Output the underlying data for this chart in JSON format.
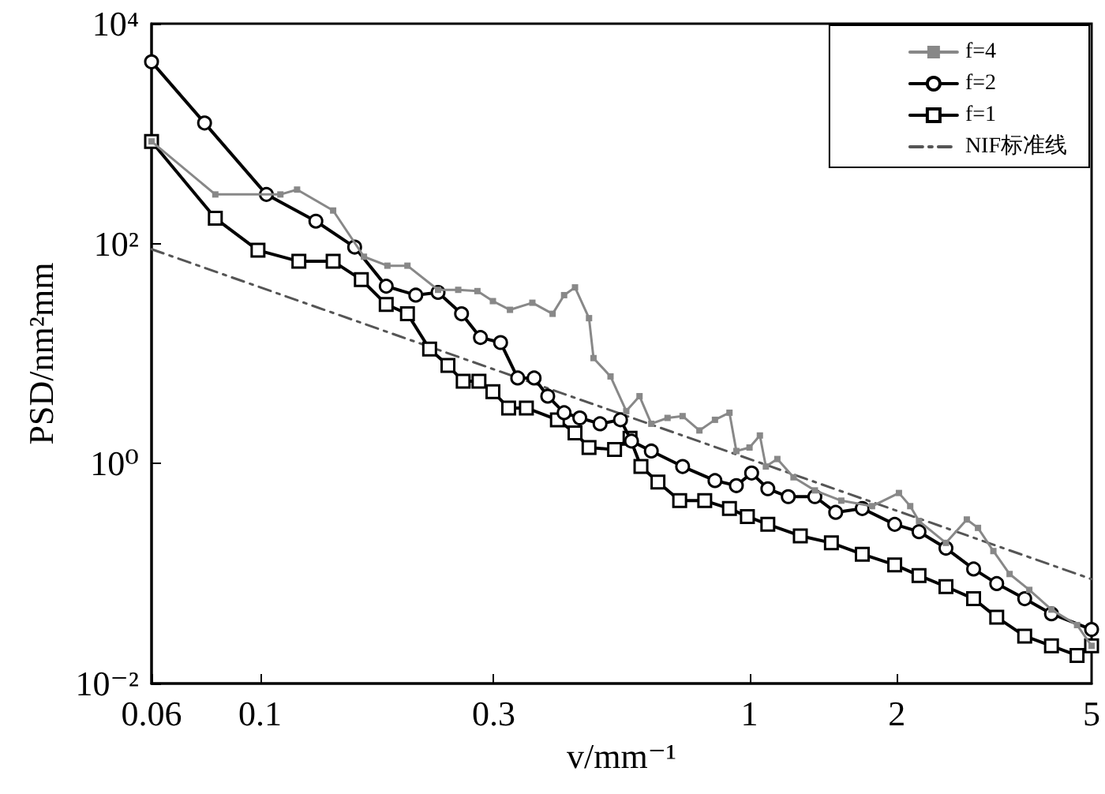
{
  "chart_data": {
    "type": "line",
    "xlabel": "v/mm⁻¹",
    "ylabel": "PSD/nm²mm",
    "log": "xy",
    "grid": false,
    "legend": "top right",
    "xlim": [
      0.06,
      5
    ],
    "xticks": [
      0.06,
      0.1,
      0.3,
      1,
      2,
      5
    ],
    "ylim": [
      0.01,
      10000
    ],
    "yticks": [
      {
        "value": 0.01,
        "label": "10⁻²"
      },
      {
        "value": 1,
        "label": "10⁰"
      },
      {
        "value": 100,
        "label": "10²"
      },
      {
        "value": 10000,
        "label": "10⁴"
      }
    ],
    "series": [
      {
        "name": "f=4",
        "color": "#888888",
        "marker": "square",
        "line_style": "solid",
        "x": [
          0.06,
          0.081,
          0.11,
          0.119,
          0.141,
          0.163,
          0.182,
          0.2,
          0.231,
          0.254,
          0.278,
          0.299,
          0.324,
          0.36,
          0.396,
          0.418,
          0.44,
          0.47,
          0.48,
          0.52,
          0.56,
          0.596,
          0.63,
          0.68,
          0.73,
          0.79,
          0.85,
          0.91,
          0.94,
          1.0,
          1.05,
          1.08,
          1.14,
          1.23,
          1.36,
          1.54,
          1.78,
          2.02,
          2.13,
          2.22,
          2.52,
          2.78,
          2.93,
          3.15,
          3.4,
          3.73,
          4.14,
          4.67,
          5
        ],
        "values": [
          850,
          280,
          280,
          310,
          200,
          76,
          63,
          63,
          38,
          38,
          37,
          30,
          25,
          29,
          23,
          34,
          40,
          21,
          9.1,
          6.2,
          3.0,
          4.1,
          2.3,
          2.6,
          2.7,
          2.0,
          2.5,
          2.9,
          1.3,
          1.4,
          1.8,
          0.94,
          1.1,
          0.75,
          0.57,
          0.46,
          0.41,
          0.54,
          0.41,
          0.3,
          0.19,
          0.31,
          0.26,
          0.16,
          0.099,
          0.071,
          0.047,
          0.034,
          0.022
        ]
      },
      {
        "name": "f=2",
        "color": "#000000",
        "marker": "circle",
        "line_style": "solid",
        "x": [
          0.06,
          0.077,
          0.103,
          0.13,
          0.156,
          0.181,
          0.208,
          0.231,
          0.258,
          0.282,
          0.31,
          0.336,
          0.363,
          0.387,
          0.418,
          0.45,
          0.495,
          0.545,
          0.574,
          0.63,
          0.73,
          0.85,
          0.94,
          1.01,
          1.09,
          1.2,
          1.36,
          1.5,
          1.7,
          1.98,
          2.22,
          2.52,
          2.87,
          3.2,
          3.65,
          4.14,
          5
        ],
        "values": [
          4500,
          1250,
          280,
          160,
          93,
          41,
          34,
          36,
          23,
          14,
          12.6,
          6.0,
          6.0,
          4.1,
          2.9,
          2.6,
          2.3,
          2.5,
          1.6,
          1.3,
          0.94,
          0.7,
          0.63,
          0.82,
          0.59,
          0.5,
          0.5,
          0.36,
          0.39,
          0.28,
          0.24,
          0.17,
          0.11,
          0.081,
          0.059,
          0.043,
          0.031
        ]
      },
      {
        "name": "f=1",
        "color": "#000000",
        "marker": "square",
        "line_style": "solid",
        "x": [
          0.06,
          0.081,
          0.099,
          0.12,
          0.141,
          0.161,
          0.181,
          0.2,
          0.222,
          0.242,
          0.26,
          0.28,
          0.299,
          0.322,
          0.35,
          0.405,
          0.44,
          0.47,
          0.53,
          0.57,
          0.6,
          0.65,
          0.72,
          0.81,
          0.91,
          0.99,
          1.09,
          1.27,
          1.47,
          1.7,
          1.98,
          2.22,
          2.52,
          2.87,
          3.2,
          3.65,
          4.14,
          4.67,
          5
        ],
        "values": [
          850,
          170,
          87,
          69,
          69,
          47,
          28,
          23,
          11,
          7.8,
          5.6,
          5.6,
          4.5,
          3.2,
          3.2,
          2.5,
          1.9,
          1.4,
          1.34,
          1.7,
          0.94,
          0.68,
          0.46,
          0.46,
          0.39,
          0.33,
          0.28,
          0.22,
          0.19,
          0.15,
          0.12,
          0.096,
          0.076,
          0.059,
          0.04,
          0.027,
          0.022,
          0.018,
          0.022
        ]
      },
      {
        "name": "NIF标准线",
        "color": "#555555",
        "marker": "none",
        "line_style": "dashed",
        "x": [
          0.06,
          5
        ],
        "values": [
          89,
          0.089
        ]
      }
    ]
  }
}
